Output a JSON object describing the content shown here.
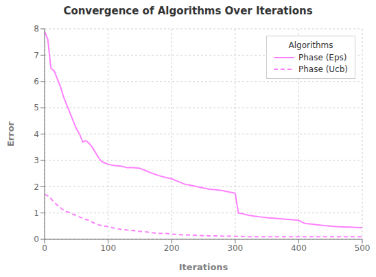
{
  "chart_data": {
    "type": "line",
    "title": "Convergence of Algorithms Over Iterations",
    "xlabel": "Iterations",
    "ylabel": "Error",
    "xlim": [
      0,
      500
    ],
    "ylim": [
      0,
      8
    ],
    "xticks": [
      0,
      100,
      200,
      300,
      400,
      500
    ],
    "yticks": [
      0,
      1,
      2,
      3,
      4,
      5,
      6,
      7,
      8
    ],
    "grid": true,
    "legend": "upper right",
    "legend_title": "Algorithms",
    "series": [
      {
        "name": "Phase (Eps)",
        "color": "#ff80ff",
        "line_style": "solid",
        "x": [
          0,
          5,
          10,
          15,
          20,
          25,
          30,
          35,
          40,
          45,
          50,
          55,
          60,
          65,
          70,
          75,
          80,
          85,
          90,
          95,
          100,
          110,
          120,
          130,
          140,
          150,
          160,
          170,
          180,
          190,
          200,
          210,
          220,
          230,
          240,
          250,
          260,
          270,
          280,
          290,
          300,
          305,
          310,
          320,
          330,
          340,
          350,
          360,
          370,
          380,
          390,
          400,
          410,
          420,
          430,
          440,
          450,
          460,
          470,
          480,
          490,
          500
        ],
        "values": [
          7.9,
          7.6,
          6.5,
          6.4,
          6.1,
          5.8,
          5.4,
          5.1,
          4.8,
          4.5,
          4.2,
          4.0,
          3.7,
          3.75,
          3.65,
          3.5,
          3.3,
          3.1,
          2.95,
          2.9,
          2.85,
          2.8,
          2.78,
          2.72,
          2.72,
          2.7,
          2.6,
          2.5,
          2.42,
          2.35,
          2.3,
          2.2,
          2.1,
          2.05,
          2.0,
          1.95,
          1.9,
          1.88,
          1.85,
          1.8,
          1.75,
          1.0,
          0.98,
          0.92,
          0.88,
          0.85,
          0.82,
          0.8,
          0.78,
          0.76,
          0.74,
          0.72,
          0.6,
          0.58,
          0.55,
          0.52,
          0.5,
          0.48,
          0.47,
          0.46,
          0.45,
          0.44
        ]
      },
      {
        "name": "Phase (Ucb)",
        "color": "#ff80ff",
        "line_style": "dashed",
        "x": [
          0,
          5,
          10,
          15,
          20,
          25,
          30,
          35,
          40,
          45,
          50,
          55,
          60,
          65,
          70,
          75,
          80,
          85,
          90,
          95,
          100,
          110,
          120,
          130,
          140,
          150,
          160,
          170,
          180,
          190,
          200,
          210,
          220,
          230,
          240,
          250,
          260,
          270,
          280,
          290,
          300,
          310,
          320,
          330,
          340,
          350,
          360,
          370,
          380,
          390,
          400,
          410,
          420,
          430,
          440,
          450,
          460,
          470,
          480,
          490,
          500
        ],
        "values": [
          1.7,
          1.65,
          1.55,
          1.4,
          1.3,
          1.2,
          1.1,
          1.05,
          1.0,
          0.95,
          0.9,
          0.85,
          0.8,
          0.75,
          0.72,
          0.65,
          0.6,
          0.55,
          0.52,
          0.5,
          0.48,
          0.42,
          0.38,
          0.35,
          0.33,
          0.3,
          0.28,
          0.25,
          0.23,
          0.22,
          0.2,
          0.18,
          0.17,
          0.16,
          0.15,
          0.14,
          0.13,
          0.13,
          0.12,
          0.12,
          0.11,
          0.11,
          0.1,
          0.1,
          0.1,
          0.1,
          0.1,
          0.1,
          0.1,
          0.1,
          0.1,
          0.1,
          0.1,
          0.1,
          0.1,
          0.1,
          0.1,
          0.1,
          0.1,
          0.1,
          0.1
        ]
      }
    ]
  }
}
